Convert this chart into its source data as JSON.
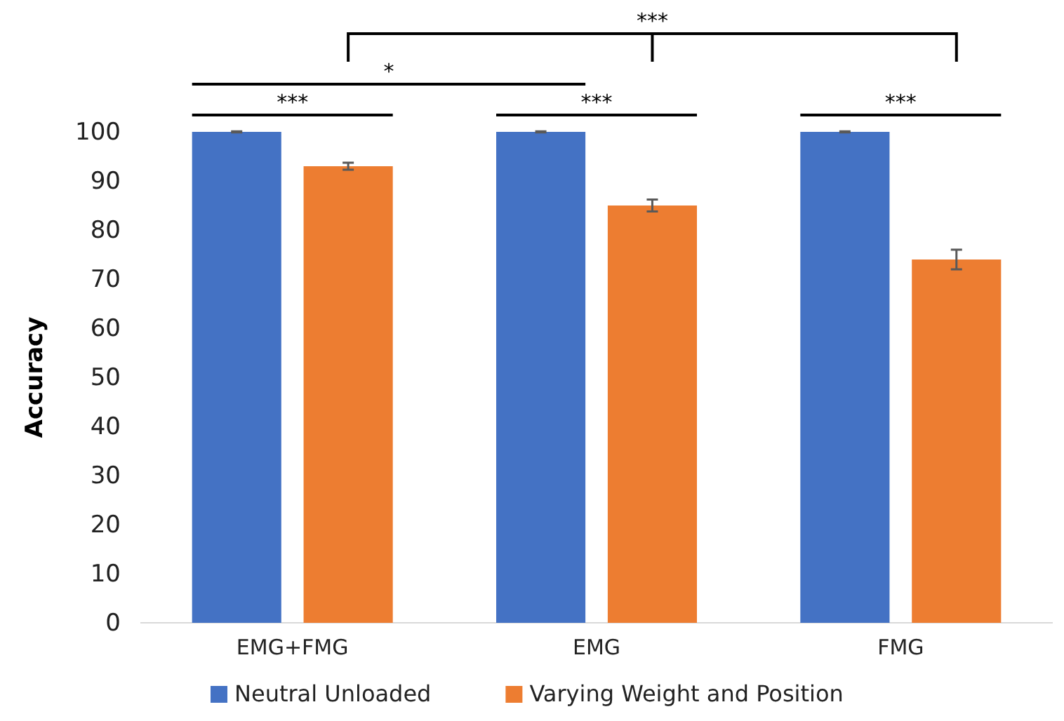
{
  "chart_data": {
    "type": "bar",
    "ylabel": "Accuracy",
    "categories": [
      "EMG+FMG",
      "EMG",
      "FMG"
    ],
    "series": [
      {
        "name": "Neutral Unloaded",
        "color": "#4472c4",
        "values": [
          100,
          100,
          100
        ],
        "errors": [
          0.1,
          0.1,
          0.1
        ]
      },
      {
        "name": "Varying Weight and Position",
        "color": "#ed7d31",
        "values": [
          93,
          85,
          74
        ],
        "errors": [
          0.7,
          1.2,
          2
        ]
      }
    ],
    "ylim": [
      0,
      100
    ],
    "yticks": [
      0,
      10,
      20,
      30,
      40,
      50,
      60,
      70,
      80,
      90,
      100
    ],
    "grid": false,
    "legend": "bottom",
    "annotations": [
      "***",
      "*",
      "***",
      "***",
      "***"
    ]
  }
}
